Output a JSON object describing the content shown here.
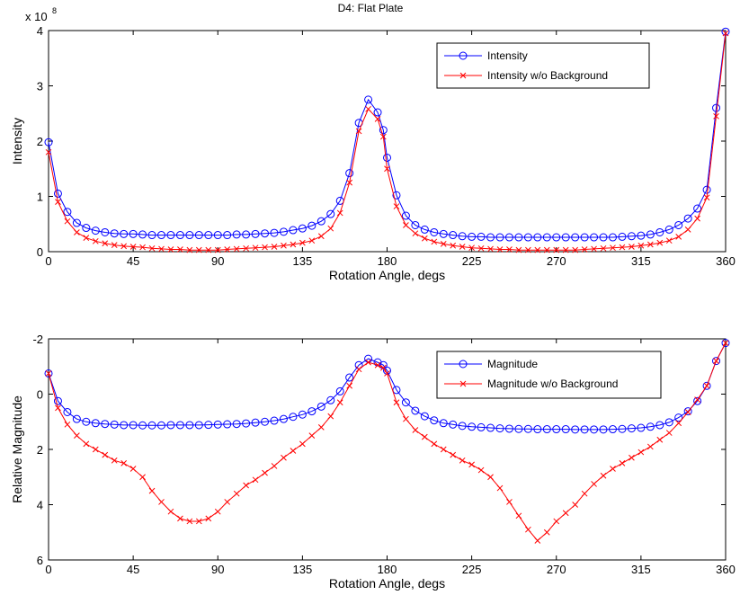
{
  "figure_title": "D4: Flat Plate",
  "chart_data": [
    {
      "type": "line",
      "title": "D4: Flat Plate",
      "xlabel": "Rotation Angle, degs",
      "ylabel": "Intensity",
      "exponent_label": "x 10",
      "exponent_power": "8",
      "xlim": [
        0,
        360
      ],
      "ylim": [
        0,
        4
      ],
      "y_reversed": false,
      "xticks": [
        "0",
        "45",
        "90",
        "135",
        "180",
        "225",
        "270",
        "315",
        "360"
      ],
      "yticks": [
        "0",
        "1",
        "2",
        "3",
        "4"
      ],
      "legend_position": "top-right",
      "x": [
        0,
        5,
        10,
        15,
        20,
        25,
        30,
        35,
        40,
        45,
        50,
        55,
        60,
        65,
        70,
        75,
        80,
        85,
        90,
        95,
        100,
        105,
        110,
        115,
        120,
        125,
        130,
        135,
        140,
        145,
        150,
        155,
        160,
        165,
        170,
        175,
        178,
        180,
        185,
        190,
        195,
        200,
        205,
        210,
        215,
        220,
        225,
        230,
        235,
        240,
        245,
        250,
        255,
        260,
        265,
        270,
        275,
        280,
        285,
        290,
        295,
        300,
        305,
        310,
        315,
        320,
        325,
        330,
        335,
        340,
        345,
        350,
        355,
        360
      ],
      "series": [
        {
          "name": "Intensity",
          "color": "#0000ff",
          "marker": "circle",
          "values": [
            1.98,
            1.05,
            0.72,
            0.52,
            0.43,
            0.38,
            0.35,
            0.33,
            0.32,
            0.32,
            0.31,
            0.3,
            0.3,
            0.3,
            0.3,
            0.3,
            0.3,
            0.3,
            0.3,
            0.3,
            0.31,
            0.31,
            0.32,
            0.33,
            0.34,
            0.36,
            0.39,
            0.42,
            0.47,
            0.55,
            0.68,
            0.92,
            1.42,
            2.33,
            2.75,
            2.52,
            2.2,
            1.7,
            1.02,
            0.65,
            0.48,
            0.4,
            0.35,
            0.32,
            0.3,
            0.28,
            0.27,
            0.27,
            0.26,
            0.26,
            0.26,
            0.26,
            0.26,
            0.26,
            0.26,
            0.26,
            0.26,
            0.26,
            0.26,
            0.26,
            0.26,
            0.26,
            0.27,
            0.28,
            0.29,
            0.31,
            0.35,
            0.4,
            0.48,
            0.6,
            0.78,
            1.12,
            2.6,
            3.98
          ]
        },
        {
          "name": "Intensity w/o Background",
          "color": "#ff0000",
          "marker": "x",
          "values": [
            1.8,
            0.9,
            0.55,
            0.35,
            0.25,
            0.19,
            0.15,
            0.12,
            0.1,
            0.09,
            0.08,
            0.06,
            0.05,
            0.04,
            0.04,
            0.03,
            0.03,
            0.03,
            0.03,
            0.04,
            0.05,
            0.06,
            0.07,
            0.08,
            0.09,
            0.11,
            0.13,
            0.16,
            0.2,
            0.28,
            0.42,
            0.7,
            1.25,
            2.18,
            2.58,
            2.4,
            2.08,
            1.5,
            0.82,
            0.48,
            0.33,
            0.24,
            0.18,
            0.14,
            0.11,
            0.09,
            0.07,
            0.06,
            0.05,
            0.04,
            0.04,
            0.03,
            0.03,
            0.03,
            0.03,
            0.03,
            0.03,
            0.03,
            0.04,
            0.05,
            0.06,
            0.07,
            0.08,
            0.09,
            0.11,
            0.13,
            0.16,
            0.2,
            0.27,
            0.4,
            0.6,
            0.98,
            2.45,
            3.95
          ]
        }
      ]
    },
    {
      "type": "line",
      "title": "",
      "xlabel": "Rotation Angle, degs",
      "ylabel": "Relative Magnitude",
      "xlim": [
        0,
        360
      ],
      "ylim": [
        -2,
        6
      ],
      "y_reversed": true,
      "xticks": [
        "0",
        "45",
        "90",
        "135",
        "180",
        "225",
        "270",
        "315",
        "360"
      ],
      "yticks": [
        "-2",
        "0",
        "2",
        "4",
        "6"
      ],
      "legend_position": "top-right",
      "x": [
        0,
        5,
        10,
        15,
        20,
        25,
        30,
        35,
        40,
        45,
        50,
        55,
        60,
        65,
        70,
        75,
        80,
        85,
        90,
        95,
        100,
        105,
        110,
        115,
        120,
        125,
        130,
        135,
        140,
        145,
        150,
        155,
        160,
        165,
        170,
        175,
        178,
        180,
        185,
        190,
        195,
        200,
        205,
        210,
        215,
        220,
        225,
        230,
        235,
        240,
        245,
        250,
        255,
        260,
        265,
        270,
        275,
        280,
        285,
        290,
        295,
        300,
        305,
        310,
        315,
        320,
        325,
        330,
        335,
        340,
        345,
        350,
        355,
        360
      ],
      "series": [
        {
          "name": "Magnitude",
          "color": "#0000ff",
          "marker": "circle",
          "values": [
            -0.75,
            0.25,
            0.65,
            0.9,
            1.0,
            1.05,
            1.08,
            1.1,
            1.12,
            1.12,
            1.13,
            1.13,
            1.13,
            1.12,
            1.12,
            1.12,
            1.12,
            1.11,
            1.1,
            1.09,
            1.08,
            1.06,
            1.03,
            1.0,
            0.96,
            0.9,
            0.82,
            0.74,
            0.62,
            0.45,
            0.22,
            -0.1,
            -0.6,
            -1.05,
            -1.28,
            -1.15,
            -1.05,
            -0.85,
            -0.15,
            0.3,
            0.6,
            0.8,
            0.95,
            1.05,
            1.1,
            1.15,
            1.18,
            1.2,
            1.22,
            1.24,
            1.25,
            1.26,
            1.26,
            1.27,
            1.27,
            1.27,
            1.27,
            1.28,
            1.28,
            1.28,
            1.28,
            1.27,
            1.26,
            1.24,
            1.22,
            1.18,
            1.12,
            1.02,
            0.85,
            0.62,
            0.25,
            -0.3,
            -1.2,
            -1.85
          ]
        },
        {
          "name": "Magnitude w/o Background",
          "color": "#ff0000",
          "marker": "x",
          "values": [
            -0.75,
            0.5,
            1.1,
            1.5,
            1.8,
            2.0,
            2.2,
            2.4,
            2.5,
            2.7,
            3.0,
            3.5,
            3.9,
            4.25,
            4.5,
            4.6,
            4.6,
            4.5,
            4.25,
            3.9,
            3.6,
            3.3,
            3.1,
            2.85,
            2.6,
            2.3,
            2.05,
            1.8,
            1.5,
            1.2,
            0.8,
            0.3,
            -0.3,
            -0.9,
            -1.15,
            -1.05,
            -0.95,
            -0.75,
            0.3,
            0.9,
            1.3,
            1.55,
            1.8,
            2.0,
            2.2,
            2.4,
            2.55,
            2.75,
            3.0,
            3.4,
            3.9,
            4.4,
            4.9,
            5.3,
            5.0,
            4.6,
            4.3,
            4.0,
            3.6,
            3.25,
            2.95,
            2.7,
            2.5,
            2.3,
            2.1,
            1.9,
            1.65,
            1.4,
            1.05,
            0.65,
            0.2,
            -0.3,
            -1.2,
            -1.85
          ]
        }
      ]
    }
  ]
}
